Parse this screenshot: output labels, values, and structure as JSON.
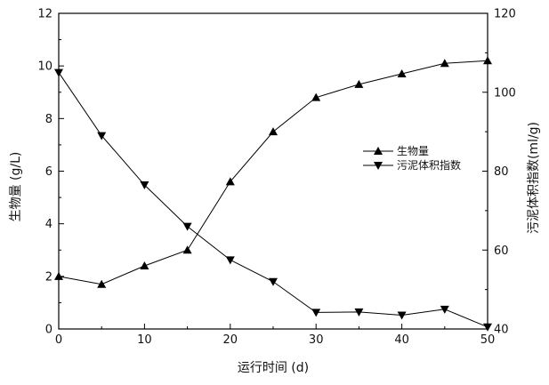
{
  "chart_data": {
    "type": "line",
    "x": [
      0,
      5,
      10,
      15,
      20,
      25,
      30,
      35,
      40,
      45,
      50
    ],
    "xlim": [
      0,
      50
    ],
    "xticks": [
      "0",
      "10",
      "20",
      "30",
      "40",
      "50"
    ],
    "xlabel": "运行时间 (d)",
    "ylabel_left": "生物量 (g/L)",
    "ylim_left": [
      0,
      12
    ],
    "yticks_left": [
      "0",
      "2",
      "4",
      "6",
      "8",
      "10",
      "12"
    ],
    "ylabel_right": "污泥体积指数(ml/g)",
    "ylim_right": [
      40,
      120
    ],
    "yticks_right": [
      "40",
      "60",
      "80",
      "100",
      "120"
    ],
    "grid": false,
    "legend_position": "center-right",
    "series": [
      {
        "name": "生物量",
        "axis": "left",
        "marker": "triangle-up",
        "values": [
          2.0,
          1.7,
          2.4,
          3.0,
          5.6,
          7.5,
          8.8,
          9.3,
          9.7,
          10.1,
          10.2
        ]
      },
      {
        "name": "污泥体积指数",
        "axis": "right",
        "marker": "triangle-down",
        "values": [
          105,
          89,
          76.5,
          66,
          57.5,
          52,
          44.2,
          44.3,
          43.5,
          45,
          40.5
        ]
      }
    ]
  }
}
